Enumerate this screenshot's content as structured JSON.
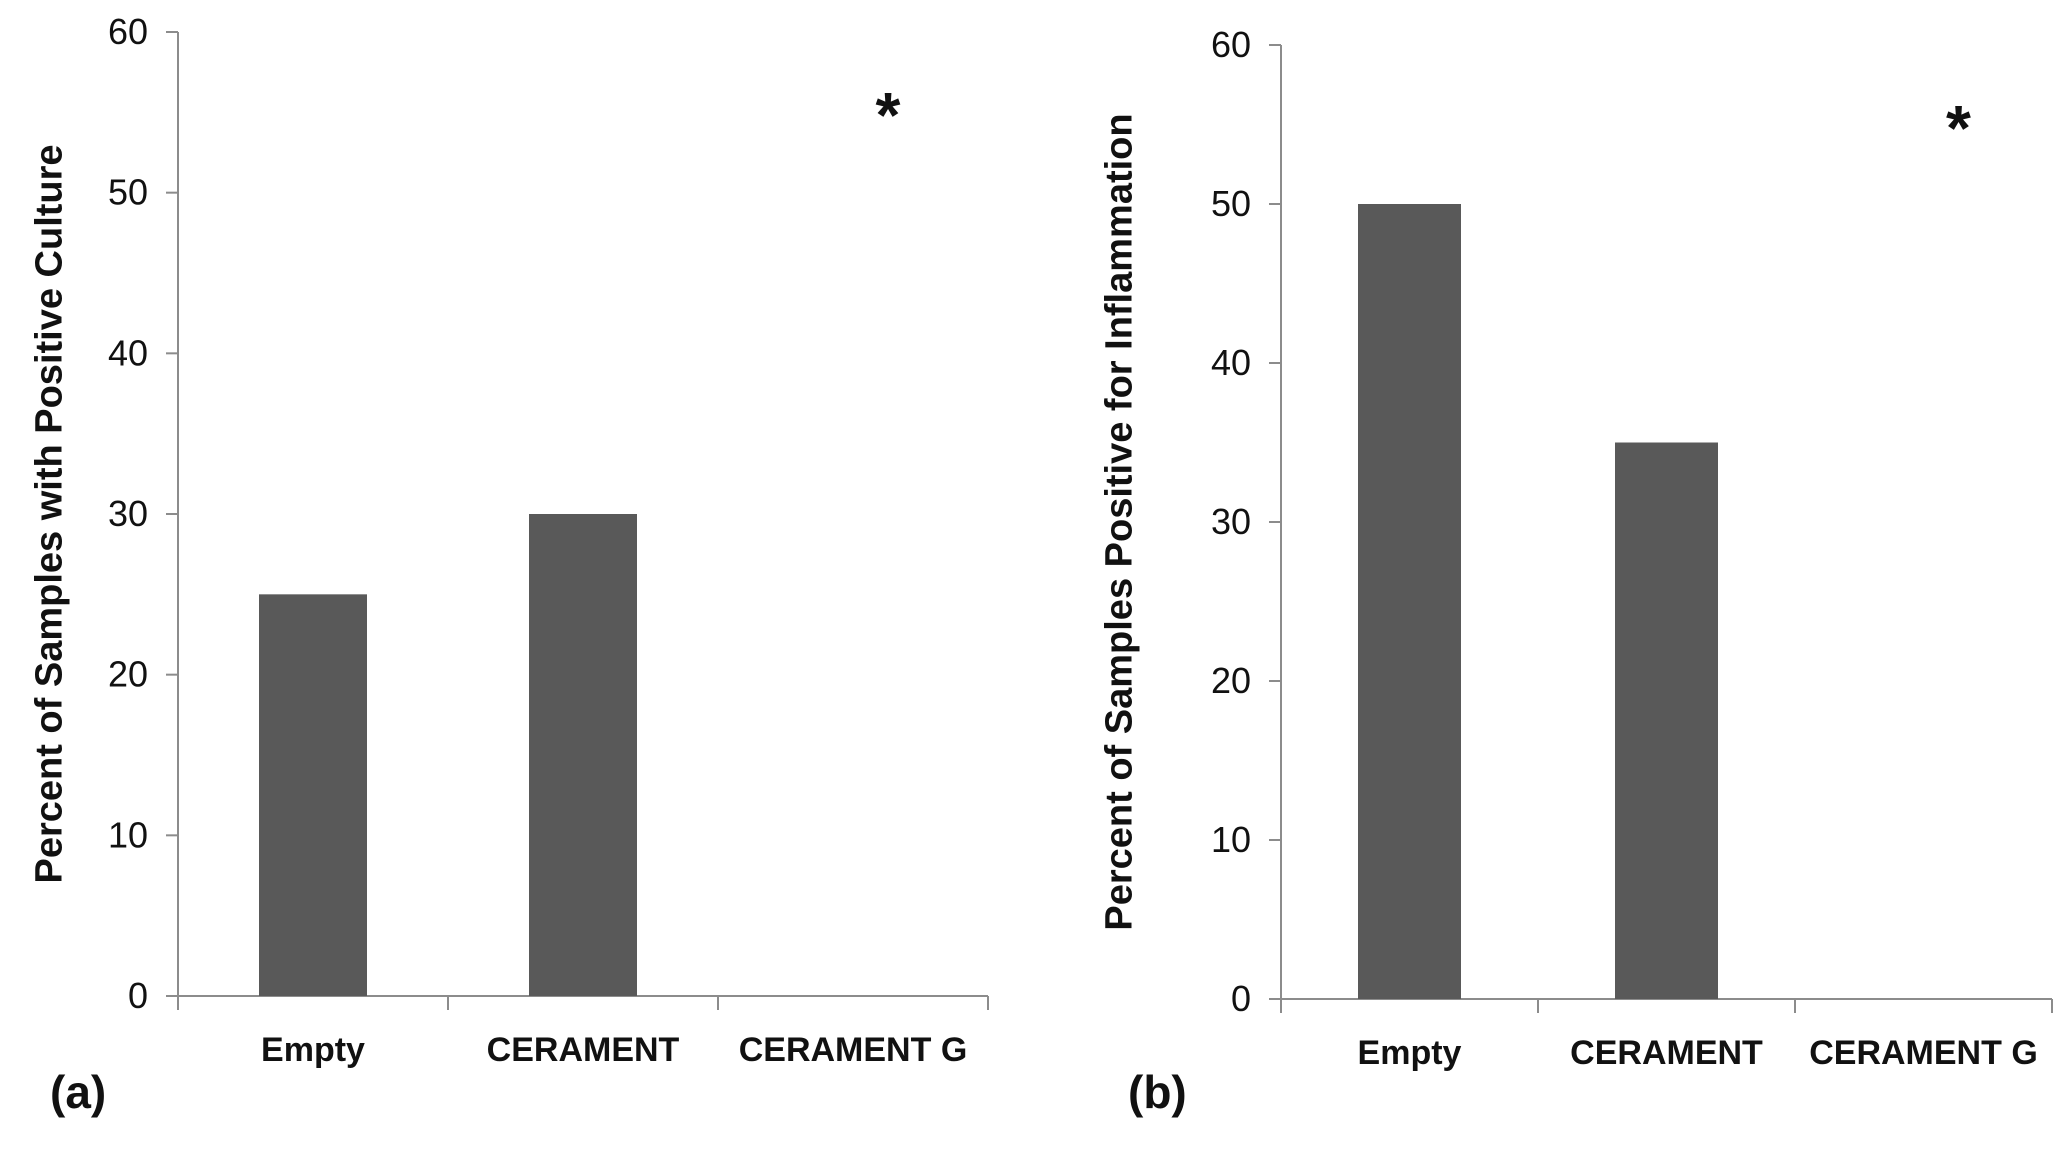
{
  "colors": {
    "bar": "#595959",
    "axis": "#8c8c8c",
    "text": "#111111"
  },
  "chart_data": [
    {
      "type": "bar",
      "panel_label": "(a)",
      "categories": [
        "Empty",
        "CERAMENT",
        "CERAMENT G"
      ],
      "values": [
        25,
        30,
        0
      ],
      "ylabel": "Percent of Samples with Positive Culture",
      "xlabel": "",
      "ylim": [
        0,
        60
      ],
      "yticks": [
        0,
        10,
        20,
        30,
        40,
        50,
        60
      ],
      "annotations": [
        {
          "text": "*",
          "category": "CERAMENT G"
        }
      ],
      "grid": false,
      "legend": "none"
    },
    {
      "type": "bar",
      "panel_label": "(b)",
      "categories": [
        "Empty",
        "CERAMENT",
        "CERAMENT G"
      ],
      "values": [
        50,
        35,
        0
      ],
      "ylabel": "Percent of Samples Positive for Inflammation",
      "xlabel": "",
      "ylim": [
        0,
        60
      ],
      "yticks": [
        0,
        10,
        20,
        30,
        40,
        50,
        60
      ],
      "annotations": [
        {
          "text": "*",
          "category": "CERAMENT G"
        }
      ],
      "grid": false,
      "legend": "none"
    }
  ]
}
